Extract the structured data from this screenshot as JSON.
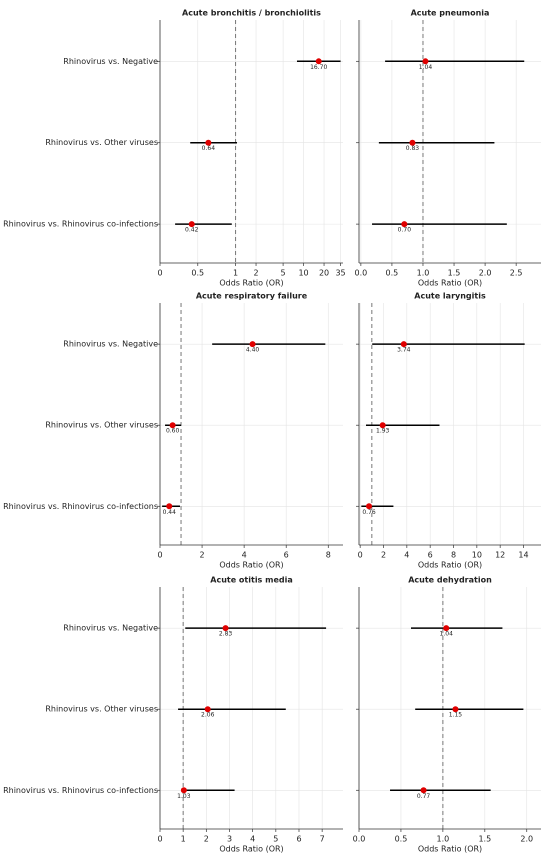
{
  "chart_data": [
    {
      "type": "forest",
      "title": "Acute bronchitis / bronchiolitis",
      "xlabel": "Odds Ratio (OR)",
      "categories": [
        "Rhinovirus vs. Negative",
        "Rhinovirus vs. Other viruses",
        "Rhinovirus vs. Rhinovirus co-infections"
      ],
      "values": [
        16.7,
        0.64,
        0.42
      ],
      "value_labels": [
        "16.70",
        "0.64",
        "0.42"
      ],
      "lower": [
        8,
        0.4,
        0.2
      ],
      "upper": [
        35,
        1.05,
        0.95
      ],
      "xscale": "symlog",
      "linthresh": 1,
      "xlim": [
        0,
        38
      ],
      "xticks": [
        0,
        0.5,
        1,
        2,
        5,
        10,
        20,
        35
      ],
      "refline": 1,
      "color": "#e00000",
      "grid": true
    },
    {
      "type": "forest",
      "title": "Acute pneumonia",
      "xlabel": "Odds Ratio (OR)",
      "values": [
        1.04,
        0.83,
        0.7
      ],
      "value_labels": [
        "1.04",
        "0.83",
        "0.70"
      ],
      "lower": [
        0.39,
        0.29,
        0.18
      ],
      "upper": [
        2.63,
        2.15,
        2.35
      ],
      "xscale": "linear",
      "xlim": [
        -0.03,
        2.9
      ],
      "xticks": [
        {
          "value": 0,
          "label": "0.0"
        },
        0.5,
        {
          "value": 1,
          "label": "1.0"
        },
        1.5,
        {
          "value": 2,
          "label": "2.0"
        },
        2.5
      ],
      "refline": 1,
      "color": "#e00000",
      "grid": true
    },
    {
      "type": "forest",
      "title": "Acute respiratory failure",
      "xlabel": "Odds Ratio (OR)",
      "categories": [
        "Rhinovirus vs. Negative",
        "Rhinovirus vs. Other viruses",
        "Rhinovirus vs. Rhinovirus co-infections"
      ],
      "values": [
        4.4,
        0.6,
        0.44
      ],
      "value_labels": [
        "4.40",
        "0.60",
        "0.44"
      ],
      "lower": [
        2.48,
        0.24,
        0.1
      ],
      "upper": [
        7.86,
        1.0,
        0.95
      ],
      "xscale": "linear",
      "xlim": [
        0,
        8.7
      ],
      "xticks": [
        0,
        2,
        4,
        6,
        8
      ],
      "refline": 1,
      "color": "#e00000",
      "grid": true
    },
    {
      "type": "forest",
      "title": "Acute laryngitis",
      "xlabel": "Odds Ratio (OR)",
      "values": [
        3.74,
        1.93,
        0.76
      ],
      "value_labels": [
        "3.74",
        "1.93",
        "0.76"
      ],
      "lower": [
        1.03,
        0.5,
        0.1
      ],
      "upper": [
        14.1,
        6.8,
        2.85
      ],
      "xscale": "linear",
      "xlim": [
        -0.1,
        15.5
      ],
      "xticks": [
        0,
        2,
        4,
        6,
        8,
        10,
        12,
        14
      ],
      "refline": 1,
      "color": "#e00000",
      "grid": true
    },
    {
      "type": "forest",
      "title": "Acute otitis media",
      "xlabel": "Odds Ratio (OR)",
      "categories": [
        "Rhinovirus vs. Negative",
        "Rhinovirus vs. Other viruses",
        "Rhinovirus vs. Rhinovirus co-infections"
      ],
      "values": [
        2.83,
        2.06,
        1.03
      ],
      "value_labels": [
        "2.83",
        "2.06",
        "1.03"
      ],
      "lower": [
        1.09,
        0.78,
        0.92
      ],
      "upper": [
        7.17,
        5.43,
        3.22
      ],
      "xscale": "linear",
      "xlim": [
        0,
        7.9
      ],
      "xticks": [
        0,
        1,
        2,
        3,
        4,
        5,
        6,
        7
      ],
      "refline": 1,
      "color": "#e00000",
      "grid": true
    },
    {
      "type": "forest",
      "title": "Acute dehydration",
      "xlabel": "Odds Ratio (OR)",
      "values": [
        1.04,
        1.15,
        0.77
      ],
      "value_labels": [
        "1.04",
        "1.15",
        "0.77"
      ],
      "lower": [
        0.62,
        0.67,
        0.37
      ],
      "upper": [
        1.71,
        1.96,
        1.57
      ],
      "xscale": "linear",
      "xlim": [
        0,
        2.17
      ],
      "xticks": [
        {
          "value": 0,
          "label": "0.0"
        },
        0.5,
        {
          "value": 1,
          "label": "1.0"
        },
        1.5,
        {
          "value": 2,
          "label": "2.0"
        }
      ],
      "refline": 1,
      "color": "#e00000",
      "grid": true
    }
  ]
}
